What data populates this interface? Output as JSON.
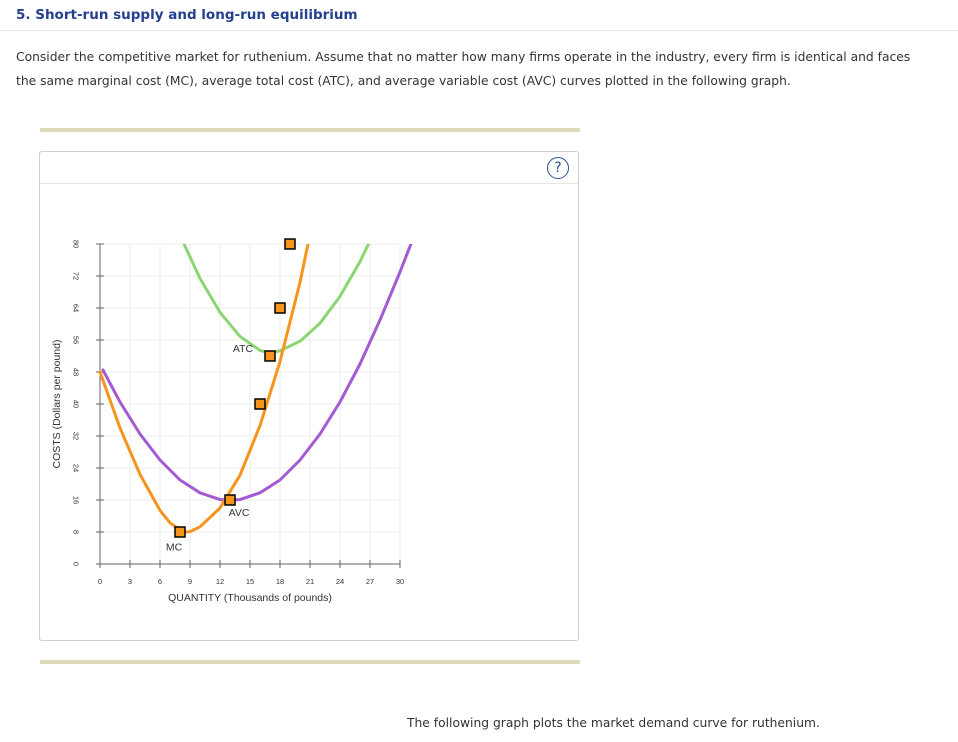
{
  "question": {
    "title": "5. Short-run supply and long-run equilibrium",
    "intro": "Consider the competitive market for ruthenium. Assume that no matter how many firms operate in the industry, every firm is identical and faces the same marginal cost (MC), average total cost (ATC), and average variable cost (AVC) curves plotted in the following graph.",
    "footer": "The following graph plots the market demand curve for ruthenium."
  },
  "graph": {
    "help_label": "?"
  },
  "colors": {
    "mc": "#f7941d",
    "atc": "#8bd672",
    "avc": "#a35ad2",
    "marker_fill": "#f7941d",
    "marker_stroke": "#000000",
    "grid": "#eeeeee",
    "axis": "#666666"
  },
  "chart_data": {
    "type": "line",
    "title": "",
    "xlabel": "QUANTITY (Thousands of pounds)",
    "ylabel": "COSTS (Dollars per pound)",
    "xlim": [
      0,
      30
    ],
    "ylim": [
      0,
      80
    ],
    "xticks": [
      0,
      3,
      6,
      9,
      12,
      15,
      18,
      21,
      24,
      27,
      30
    ],
    "yticks": [
      0,
      8,
      16,
      24,
      32,
      40,
      48,
      56,
      64,
      72,
      80
    ],
    "grid": true,
    "series": [
      {
        "name": "ATC",
        "color": "#8bd672",
        "points": [
          [
            8.4,
            80
          ],
          [
            10,
            71.4
          ],
          [
            12,
            62.9
          ],
          [
            14,
            56.9
          ],
          [
            16,
            53.4
          ],
          [
            16.95,
            52.8
          ],
          [
            18,
            53.3
          ],
          [
            20,
            55.7
          ],
          [
            22,
            60.2
          ],
          [
            24,
            66.9
          ],
          [
            26,
            75.6
          ],
          [
            27,
            80.8
          ]
        ],
        "label_at": [
          14.3,
          53.7
        ]
      },
      {
        "name": "AVC",
        "color": "#a35ad2",
        "points": [
          [
            0.3,
            48.5
          ],
          [
            2,
            40.5
          ],
          [
            4,
            32.5
          ],
          [
            6,
            26
          ],
          [
            8,
            21
          ],
          [
            10,
            17.8
          ],
          [
            12,
            16.1
          ],
          [
            13,
            16
          ],
          [
            14,
            16.1
          ],
          [
            16,
            17.8
          ],
          [
            18,
            21
          ],
          [
            20,
            26
          ],
          [
            22,
            32.5
          ],
          [
            24,
            40.5
          ],
          [
            26,
            50
          ],
          [
            28,
            61
          ],
          [
            30,
            73
          ],
          [
            31.2,
            80.7
          ]
        ],
        "label_at": [
          13.9,
          12.7
        ]
      },
      {
        "name": "MC",
        "color": "#f7941d",
        "points": [
          [
            0,
            48
          ],
          [
            2,
            34
          ],
          [
            4,
            22.4
          ],
          [
            6,
            13.4
          ],
          [
            7,
            10.3
          ],
          [
            8,
            8.5
          ],
          [
            8.6,
            8
          ],
          [
            9,
            8.1
          ],
          [
            10,
            9.3
          ],
          [
            12,
            14
          ],
          [
            14,
            22.2
          ],
          [
            16,
            34.6
          ],
          [
            18,
            50.6
          ],
          [
            20,
            70.4
          ],
          [
            20.8,
            80
          ]
        ],
        "label_at": [
          7.4,
          4.1
        ]
      }
    ],
    "marked_points": [
      {
        "curve": "MC",
        "x": 8,
        "y": 8
      },
      {
        "curve": "MC",
        "x": 13,
        "y": 16
      },
      {
        "curve": "MC",
        "x": 16,
        "y": 40
      },
      {
        "curve": "MC",
        "x": 17,
        "y": 52
      },
      {
        "curve": "MC",
        "x": 18,
        "y": 64
      },
      {
        "curve": "MC",
        "x": 19,
        "y": 80
      }
    ]
  }
}
